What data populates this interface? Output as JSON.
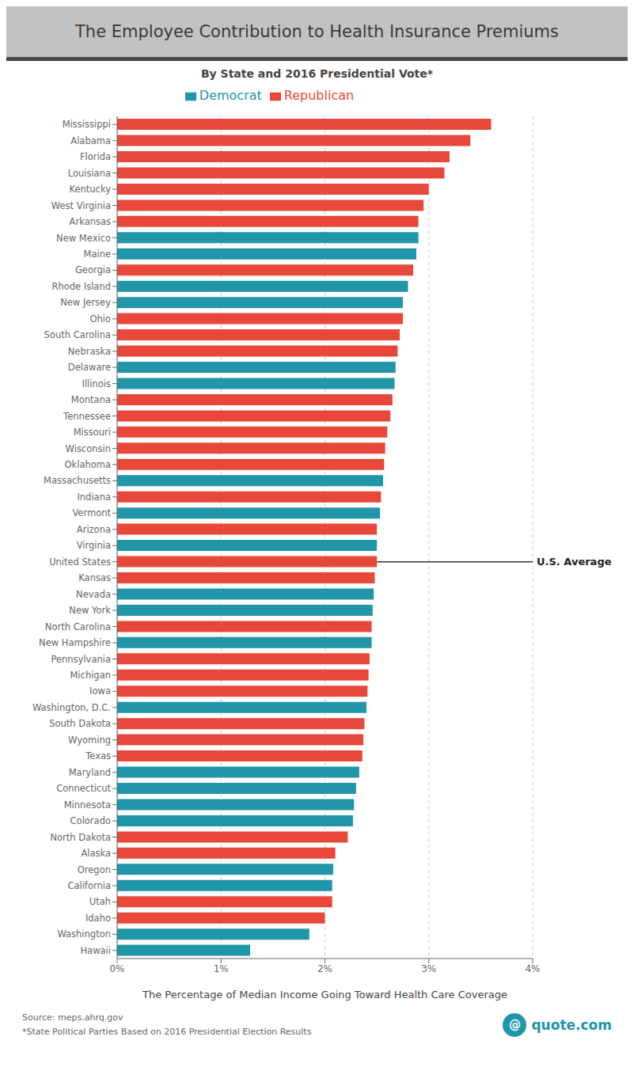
{
  "chart_data": {
    "type": "bar",
    "orientation": "horizontal",
    "stacked": true,
    "title": "The Employee Contribution to Health Insurance Premiums",
    "subtitle": "By State and 2016 Presidential Vote*",
    "xlabel": "The Percentage of Median Income Going Toward Health Care Coverage",
    "footnotes": [
      "Source: meps.ahrq.gov",
      "*State Political Parties Based on 2016 Presidential Election Results"
    ],
    "categories": [
      "Mississippi",
      "Alabama",
      "Florida",
      "Louisiana",
      "Kentucky",
      "West Virginia",
      "Arkansas",
      "New Mexico",
      "Maine",
      "Georgia",
      "Rhode Island",
      "New Jersey",
      "Ohio",
      "South Carolina",
      "Nebraska",
      "Delaware",
      "Illinois",
      "Montana",
      "Tennessee",
      "Missouri",
      "Wisconsin",
      "Oklahoma",
      "Massachusetts",
      "Indiana",
      "Vermont",
      "Arizona",
      "Virginia",
      "United States",
      "Kansas",
      "Nevada",
      "New York",
      "North Carolina",
      "New Hampshire",
      "Pennsylvania",
      "Michigan",
      "Iowa",
      "Washington, D.C.",
      "South Dakota",
      "Wyoming",
      "Texas",
      "Maryland",
      "Connecticut",
      "Minnesota",
      "Colorado",
      "North Dakota",
      "Alaska",
      "Oregon",
      "California",
      "Utah",
      "Idaho",
      "Washington",
      "Hawaii"
    ],
    "series": [
      {
        "name": "Democrat",
        "color": "#2196A8",
        "values": [
          null,
          null,
          null,
          null,
          null,
          null,
          null,
          2.9,
          2.88,
          null,
          2.8,
          2.75,
          null,
          null,
          null,
          2.68,
          2.67,
          null,
          null,
          null,
          null,
          null,
          2.56,
          null,
          2.53,
          null,
          2.5,
          null,
          null,
          2.47,
          2.46,
          null,
          2.45,
          null,
          null,
          null,
          2.4,
          null,
          null,
          null,
          2.33,
          2.3,
          2.28,
          2.27,
          null,
          null,
          2.08,
          2.07,
          null,
          null,
          1.85,
          1.28
        ]
      },
      {
        "name": "Republican",
        "color": "#E8483A",
        "values": [
          3.6,
          3.4,
          3.2,
          3.15,
          3.0,
          2.95,
          2.9,
          null,
          null,
          2.85,
          null,
          null,
          2.75,
          2.72,
          2.7,
          null,
          null,
          2.65,
          2.63,
          2.6,
          2.58,
          2.57,
          null,
          2.54,
          null,
          2.5,
          null,
          2.5,
          2.48,
          null,
          null,
          2.45,
          null,
          2.43,
          2.42,
          2.41,
          null,
          2.38,
          2.37,
          2.36,
          null,
          null,
          null,
          null,
          2.22,
          2.1,
          null,
          null,
          2.07,
          2.0,
          null,
          null
        ]
      }
    ],
    "xlim": [
      0,
      4
    ],
    "xticks": [
      {
        "value": 0,
        "label": "0%"
      },
      {
        "value": 1,
        "label": "1%"
      },
      {
        "value": 2,
        "label": "2%"
      },
      {
        "value": 3,
        "label": "3%"
      },
      {
        "value": 4,
        "label": "4%"
      }
    ],
    "grid": true,
    "legend": "top",
    "annotations": [
      {
        "text": "U.S. Average",
        "category": "United States",
        "x": 2.5
      },
      {
        "text": "@"
      },
      {
        "text": "quote.com"
      }
    ]
  }
}
